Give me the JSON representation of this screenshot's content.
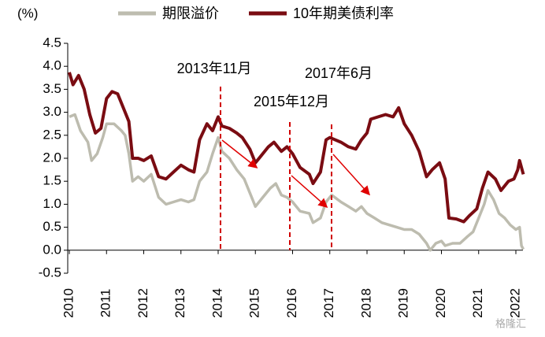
{
  "chart_data": {
    "type": "line",
    "y_unit_label": "(%)",
    "xlim": [
      2010,
      2022.4
    ],
    "xticks": [
      2010,
      2011,
      2012,
      2013,
      2014,
      2015,
      2016,
      2017,
      2018,
      2019,
      2020,
      2021,
      2022
    ],
    "ylim": [
      -0.5,
      4.5
    ],
    "yticks": [
      -0.5,
      {
        "value": 0,
        "label": "0.0"
      },
      0.5,
      {
        "value": 1,
        "label": "1.0"
      },
      1.5,
      {
        "value": 2,
        "label": "2.0"
      },
      2.5,
      {
        "value": 3,
        "label": "3.0"
      },
      3.5,
      {
        "value": 4,
        "label": "4.0"
      },
      4.5
    ],
    "grid": false,
    "legend": "top",
    "annotations": [
      "2013年11月",
      "2015年12月",
      "2017年6月"
    ],
    "watermark": "格隆汇",
    "series": [
      {
        "name": "期限溢价",
        "color": "#bdbcaf",
        "x": [
          2010.0,
          2010.15,
          2010.3,
          2010.5,
          2010.6,
          2010.75,
          2010.9,
          2011.0,
          2011.2,
          2011.4,
          2011.5,
          2011.6,
          2011.7,
          2011.85,
          2012.0,
          2012.2,
          2012.4,
          2012.6,
          2012.8,
          2013.0,
          2013.2,
          2013.35,
          2013.5,
          2013.7,
          2013.85,
          2014.0,
          2014.1,
          2014.3,
          2014.5,
          2014.7,
          2014.85,
          2015.0,
          2015.2,
          2015.4,
          2015.55,
          2015.7,
          2015.85,
          2016.0,
          2016.2,
          2016.45,
          2016.55,
          2016.75,
          2016.9,
          2017.05,
          2017.3,
          2017.5,
          2017.7,
          2017.85,
          2018.0,
          2018.2,
          2018.4,
          2018.6,
          2018.8,
          2019.0,
          2019.2,
          2019.4,
          2019.6,
          2019.7,
          2019.85,
          2020.0,
          2020.1,
          2020.3,
          2020.5,
          2020.7,
          2020.85,
          2021.0,
          2021.15,
          2021.25,
          2021.4,
          2021.55,
          2021.7,
          2021.85,
          2022.0,
          2022.1,
          2022.15,
          2022.2
        ],
        "values": [
          2.9,
          2.95,
          2.6,
          2.35,
          1.95,
          2.1,
          2.45,
          2.75,
          2.75,
          2.6,
          2.5,
          2.1,
          1.5,
          1.6,
          1.5,
          1.65,
          1.15,
          1.0,
          1.05,
          1.1,
          1.05,
          1.1,
          1.5,
          1.7,
          2.1,
          2.45,
          2.15,
          2.0,
          1.75,
          1.55,
          1.25,
          0.95,
          1.15,
          1.35,
          1.45,
          1.2,
          1.15,
          1.05,
          0.85,
          0.8,
          0.6,
          0.7,
          1.05,
          1.2,
          1.05,
          0.95,
          0.85,
          0.95,
          0.8,
          0.7,
          0.6,
          0.55,
          0.5,
          0.45,
          0.45,
          0.35,
          0.15,
          0.0,
          0.15,
          0.2,
          0.1,
          0.15,
          0.15,
          0.3,
          0.4,
          0.7,
          1.0,
          1.3,
          1.1,
          0.8,
          0.7,
          0.55,
          0.45,
          0.5,
          0.1,
          0.02
        ]
      },
      {
        "name": "10年期美债利率",
        "color": "#7a0c12",
        "x": [
          2010.0,
          2010.1,
          2010.25,
          2010.4,
          2010.55,
          2010.7,
          2010.85,
          2011.0,
          2011.15,
          2011.3,
          2011.5,
          2011.6,
          2011.7,
          2011.85,
          2012.0,
          2012.2,
          2012.4,
          2012.6,
          2012.8,
          2013.0,
          2013.2,
          2013.35,
          2013.5,
          2013.7,
          2013.85,
          2014.0,
          2014.1,
          2014.3,
          2014.5,
          2014.65,
          2014.85,
          2015.0,
          2015.1,
          2015.35,
          2015.5,
          2015.7,
          2015.85,
          2016.0,
          2016.2,
          2016.45,
          2016.55,
          2016.75,
          2016.9,
          2017.0,
          2017.3,
          2017.5,
          2017.7,
          2017.85,
          2018.0,
          2018.1,
          2018.3,
          2018.5,
          2018.7,
          2018.85,
          2019.0,
          2019.2,
          2019.4,
          2019.6,
          2019.75,
          2019.95,
          2020.1,
          2020.2,
          2020.4,
          2020.6,
          2020.75,
          2020.95,
          2021.1,
          2021.25,
          2021.45,
          2021.6,
          2021.8,
          2021.95,
          2022.05,
          2022.1,
          2022.2
        ],
        "values": [
          3.87,
          3.6,
          3.8,
          3.5,
          2.95,
          2.55,
          2.65,
          3.3,
          3.45,
          3.4,
          3.0,
          2.8,
          2.0,
          2.0,
          1.95,
          2.05,
          1.6,
          1.55,
          1.7,
          1.85,
          1.75,
          1.7,
          2.4,
          2.75,
          2.6,
          2.9,
          2.7,
          2.65,
          2.55,
          2.45,
          2.2,
          1.9,
          2.0,
          2.25,
          2.35,
          2.15,
          2.25,
          2.1,
          1.8,
          1.65,
          1.45,
          1.7,
          2.4,
          2.45,
          2.35,
          2.25,
          2.2,
          2.4,
          2.55,
          2.85,
          2.9,
          2.95,
          2.9,
          3.1,
          2.75,
          2.5,
          2.15,
          1.6,
          1.75,
          1.9,
          1.55,
          0.7,
          0.68,
          0.62,
          0.75,
          0.9,
          1.35,
          1.7,
          1.55,
          1.3,
          1.5,
          1.55,
          1.75,
          1.95,
          1.65
        ]
      }
    ]
  }
}
